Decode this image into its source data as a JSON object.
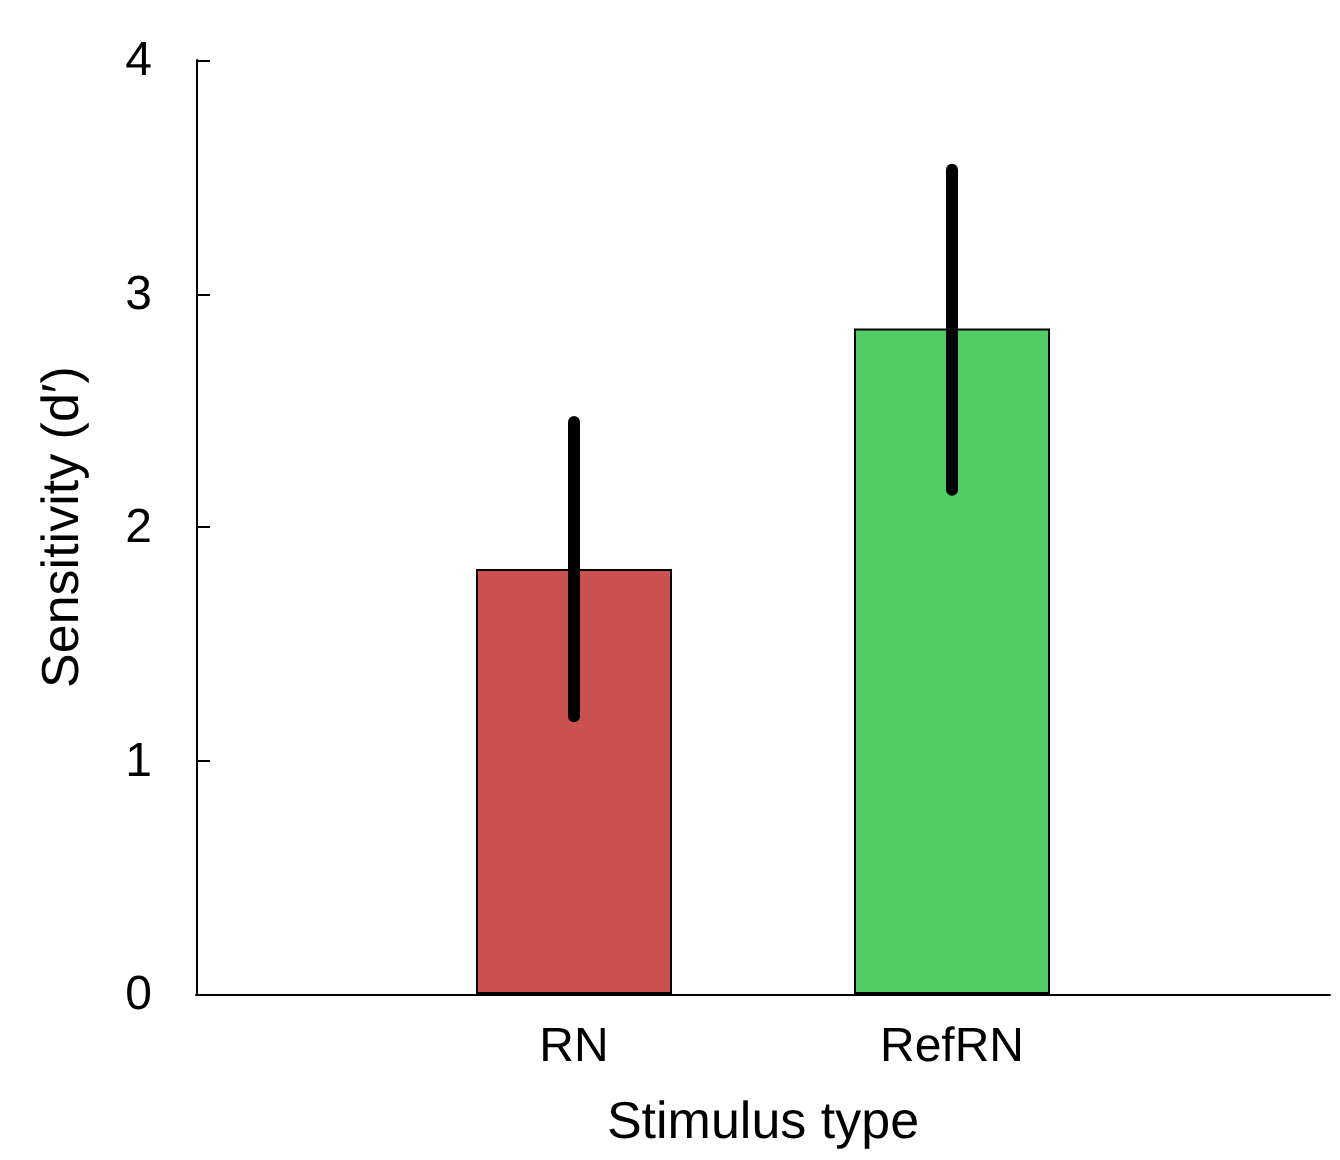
{
  "chart_data": {
    "type": "bar",
    "xlabel": "Stimulus type",
    "ylabel": "Sensitivity (d′)",
    "categories": [
      "RN",
      "RefRN"
    ],
    "values": [
      1.82,
      2.85
    ],
    "colors": [
      "#cb5050",
      "#4fcc64"
    ],
    "errors": [
      [
        1.19,
        2.45
      ],
      [
        2.16,
        3.53
      ]
    ],
    "ylim": [
      0,
      4
    ],
    "yticks": [
      0,
      1,
      2,
      3,
      4
    ],
    "grid": false
  }
}
